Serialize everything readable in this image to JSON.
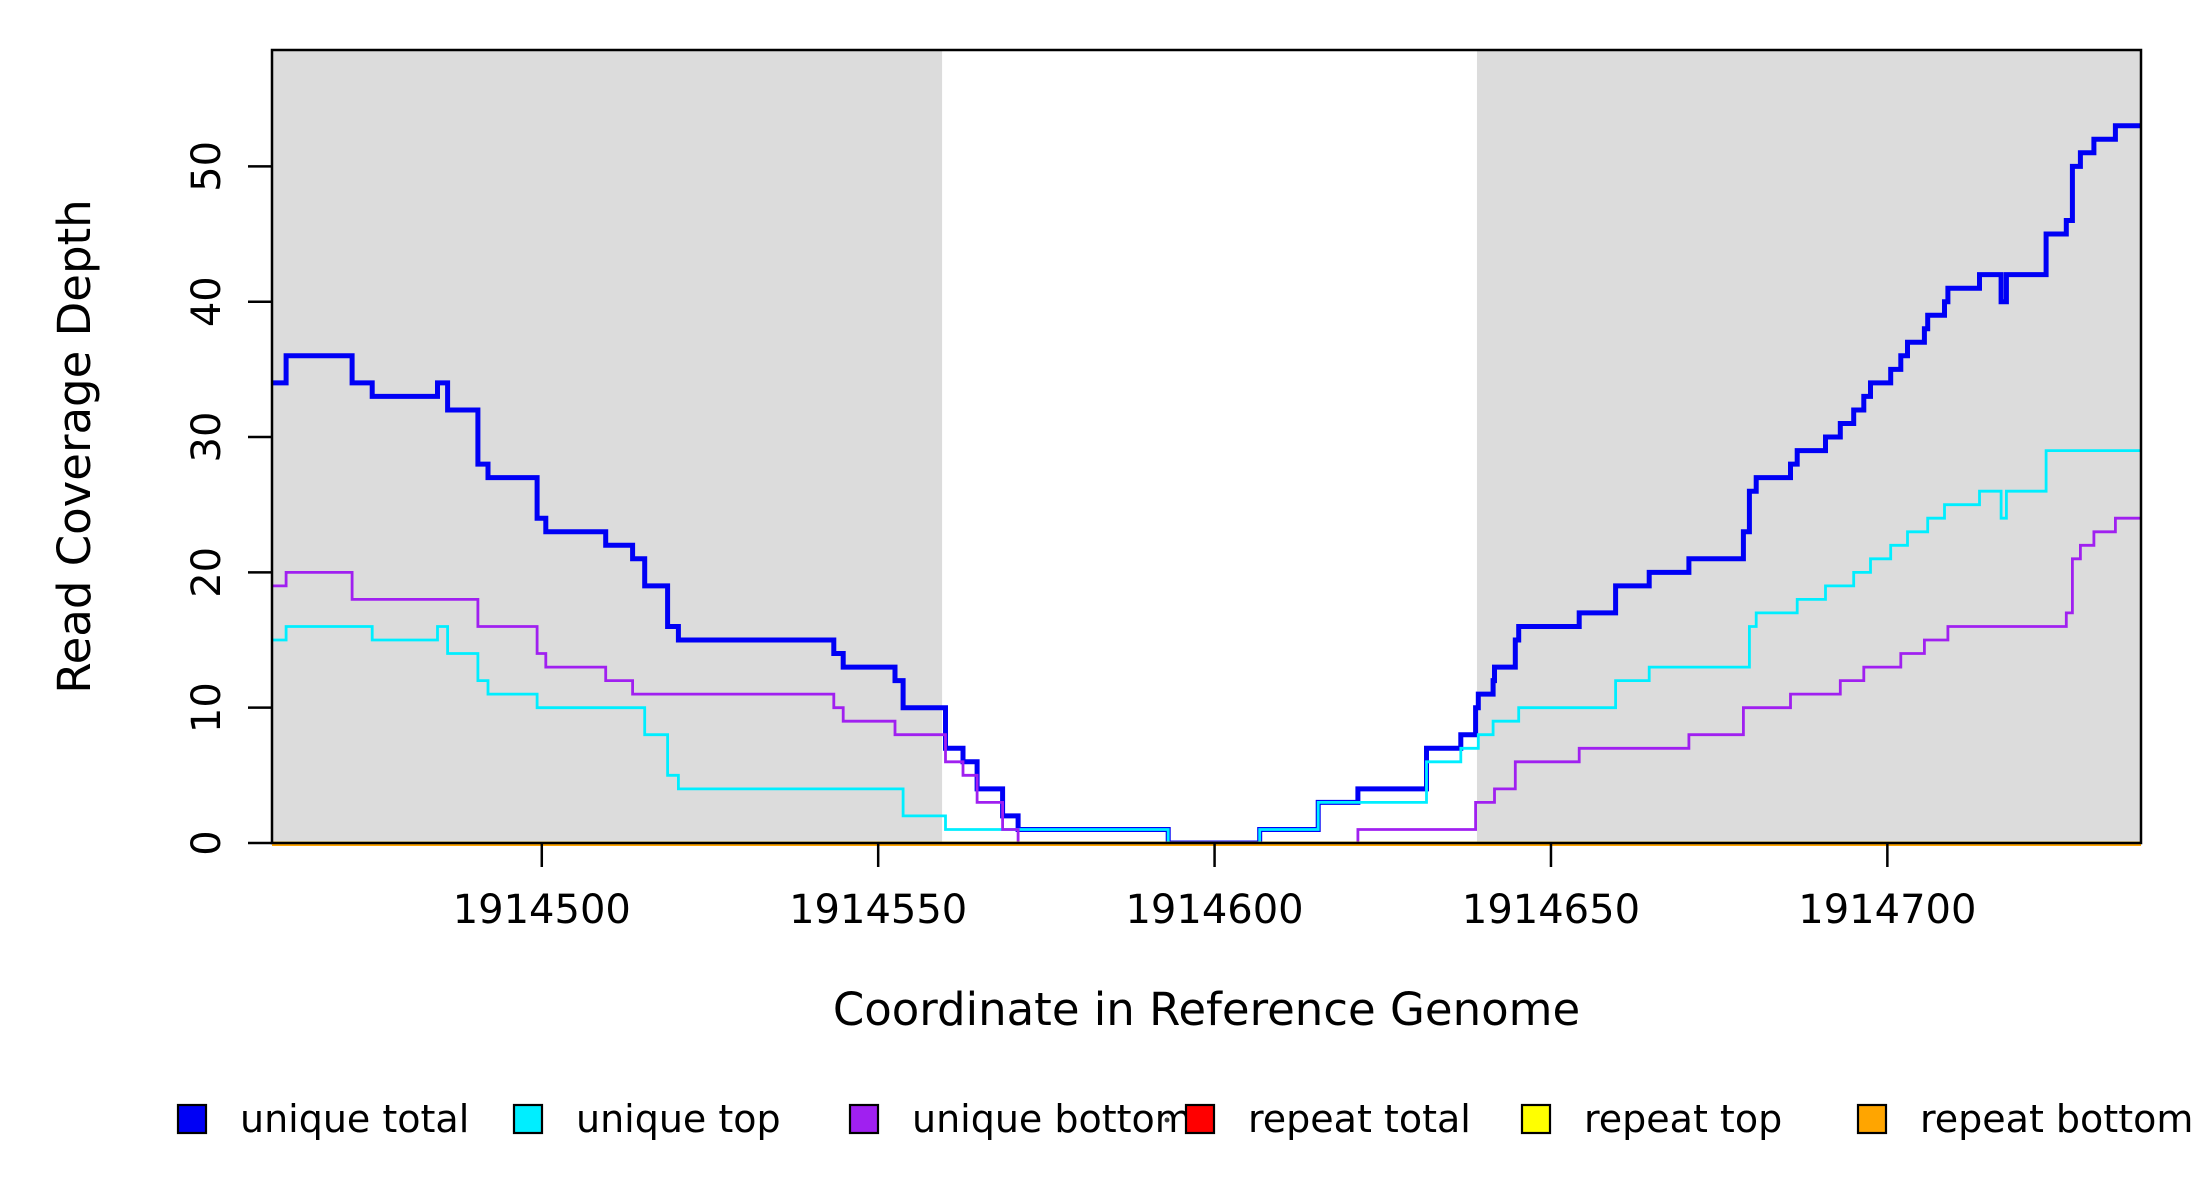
{
  "figure": {
    "background": "#ffffff"
  },
  "x_axis": {
    "title": "Coordinate in Reference Genome",
    "ticks": [
      1914500,
      1914550,
      1914600,
      1914650,
      1914700
    ],
    "range": [
      1914459.9,
      1914737.7
    ]
  },
  "y_axis": {
    "title": "Read Coverage Depth",
    "ticks": [
      0,
      10,
      20,
      30,
      40,
      50
    ],
    "range": [
      0,
      58.6
    ]
  },
  "plot": {
    "shaded_region_color": "#DCDCDC",
    "box_color": "#000000",
    "shaded_regions": [
      [
        1914459.9,
        1914559.5
      ],
      [
        1914639.0,
        1914737.7
      ]
    ]
  },
  "legend": {
    "items": [
      {
        "label": "unique total",
        "color": "#0000F5"
      },
      {
        "label": "unique top",
        "color": "#00EEFF"
      },
      {
        "label": "unique bottom",
        "color": "#A020F0"
      },
      {
        "label": "repeat total",
        "color": "#FF0000"
      },
      {
        "label": "repeat top",
        "color": "#FFFF00"
      },
      {
        "label": "repeat bottom",
        "color": "#FFA500"
      }
    ]
  },
  "chart_data": {
    "type": "line",
    "subtype": "step",
    "title": "",
    "xlabel": "Coordinate in Reference Genome",
    "ylabel": "Read Coverage Depth",
    "xlim": [
      1914459.9,
      1914737.7
    ],
    "ylim": [
      0,
      58.6
    ],
    "grid": false,
    "legend_position": "bottom",
    "series": [
      {
        "name": "unique total",
        "color": "#0000F5",
        "width": 5,
        "points": [
          [
            1914459.9,
            34
          ],
          [
            1914462,
            36
          ],
          [
            1914471.8,
            34
          ],
          [
            1914474.8,
            33
          ],
          [
            1914484.5,
            34
          ],
          [
            1914486,
            32
          ],
          [
            1914490.5,
            28
          ],
          [
            1914492,
            27
          ],
          [
            1914499.3,
            24
          ],
          [
            1914500.6,
            23
          ],
          [
            1914509.5,
            22
          ],
          [
            1914513.5,
            21
          ],
          [
            1914515.3,
            19
          ],
          [
            1914518.7,
            16
          ],
          [
            1914520.3,
            15
          ],
          [
            1914543.4,
            14
          ],
          [
            1914544.8,
            13
          ],
          [
            1914552.5,
            12
          ],
          [
            1914553.7,
            10
          ],
          [
            1914560,
            7
          ],
          [
            1914562.6,
            6
          ],
          [
            1914564.7,
            4
          ],
          [
            1914568.5,
            2
          ],
          [
            1914570.8,
            1
          ],
          [
            1914593.1,
            0
          ],
          [
            1914606.7,
            1
          ],
          [
            1914615.4,
            3
          ],
          [
            1914621.3,
            4
          ],
          [
            1914631.5,
            7
          ],
          [
            1914636.6,
            8
          ],
          [
            1914638.8,
            10
          ],
          [
            1914639.2,
            11
          ],
          [
            1914641.4,
            12
          ],
          [
            1914641.6,
            13
          ],
          [
            1914644.7,
            15
          ],
          [
            1914645.2,
            16
          ],
          [
            1914654.2,
            17
          ],
          [
            1914659.6,
            19
          ],
          [
            1914664.6,
            20
          ],
          [
            1914670.5,
            21
          ],
          [
            1914678.6,
            23
          ],
          [
            1914679.5,
            26
          ],
          [
            1914680.5,
            27
          ],
          [
            1914685.6,
            28
          ],
          [
            1914686.6,
            29
          ],
          [
            1914690.8,
            30
          ],
          [
            1914693,
            31
          ],
          [
            1914695,
            32
          ],
          [
            1914696.5,
            33
          ],
          [
            1914697.5,
            34
          ],
          [
            1914700.5,
            35
          ],
          [
            1914702,
            36
          ],
          [
            1914703,
            37
          ],
          [
            1914705.5,
            38
          ],
          [
            1914706,
            39
          ],
          [
            1914708.5,
            40
          ],
          [
            1914709,
            41
          ],
          [
            1914713.7,
            42
          ],
          [
            1914716.9,
            40
          ],
          [
            1914717.7,
            42
          ],
          [
            1914723.6,
            45
          ],
          [
            1914726.6,
            46
          ],
          [
            1914727.5,
            50
          ],
          [
            1914728.7,
            51
          ],
          [
            1914730.7,
            52
          ],
          [
            1914733.9,
            53
          ]
        ]
      },
      {
        "name": "unique top",
        "color": "#00EEFF",
        "width": 2.8,
        "points": [
          [
            1914459.9,
            15
          ],
          [
            1914462,
            16
          ],
          [
            1914474.8,
            15
          ],
          [
            1914484.5,
            16
          ],
          [
            1914486,
            14
          ],
          [
            1914490.5,
            12
          ],
          [
            1914492,
            11
          ],
          [
            1914499.3,
            10
          ],
          [
            1914515.3,
            8
          ],
          [
            1914518.7,
            5
          ],
          [
            1914520.3,
            4
          ],
          [
            1914553.7,
            2
          ],
          [
            1914560,
            1
          ],
          [
            1914593.1,
            0
          ],
          [
            1914606.7,
            1
          ],
          [
            1914615.4,
            3
          ],
          [
            1914631.5,
            6
          ],
          [
            1914636.6,
            7
          ],
          [
            1914639.2,
            8
          ],
          [
            1914641.4,
            9
          ],
          [
            1914645.2,
            10
          ],
          [
            1914659.6,
            12
          ],
          [
            1914664.6,
            13
          ],
          [
            1914679.5,
            16
          ],
          [
            1914680.5,
            17
          ],
          [
            1914686.6,
            18
          ],
          [
            1914690.8,
            19
          ],
          [
            1914695,
            20
          ],
          [
            1914697.5,
            21
          ],
          [
            1914700.5,
            22
          ],
          [
            1914703,
            23
          ],
          [
            1914706,
            24
          ],
          [
            1914708.5,
            25
          ],
          [
            1914713.7,
            26
          ],
          [
            1914716.9,
            24
          ],
          [
            1914717.7,
            26
          ],
          [
            1914723.6,
            29
          ]
        ]
      },
      {
        "name": "unique bottom",
        "color": "#A020F0",
        "width": 2.8,
        "points": [
          [
            1914459.9,
            19
          ],
          [
            1914462,
            20
          ],
          [
            1914471.8,
            18
          ],
          [
            1914490.5,
            16
          ],
          [
            1914499.3,
            14
          ],
          [
            1914500.6,
            13
          ],
          [
            1914509.5,
            12
          ],
          [
            1914513.5,
            11
          ],
          [
            1914543.4,
            10
          ],
          [
            1914544.8,
            9
          ],
          [
            1914552.5,
            8
          ],
          [
            1914560,
            6
          ],
          [
            1914562.6,
            5
          ],
          [
            1914564.7,
            3
          ],
          [
            1914568.5,
            1
          ],
          [
            1914570.8,
            0
          ],
          [
            1914621.3,
            1
          ],
          [
            1914638.8,
            3
          ],
          [
            1914641.6,
            4
          ],
          [
            1914644.7,
            6
          ],
          [
            1914654.2,
            7
          ],
          [
            1914670.5,
            8
          ],
          [
            1914678.6,
            10
          ],
          [
            1914685.6,
            11
          ],
          [
            1914693,
            12
          ],
          [
            1914696.5,
            13
          ],
          [
            1914702,
            14
          ],
          [
            1914705.5,
            15
          ],
          [
            1914709,
            16
          ],
          [
            1914726.6,
            17
          ],
          [
            1914727.5,
            21
          ],
          [
            1914728.7,
            22
          ],
          [
            1914730.7,
            23
          ],
          [
            1914733.9,
            24
          ]
        ]
      },
      {
        "name": "repeat total",
        "color": "#FF0000",
        "width": 2.8,
        "points": [
          [
            1914459.9,
            0
          ]
        ]
      },
      {
        "name": "repeat top",
        "color": "#FFFF00",
        "width": 2.8,
        "points": [
          [
            1914459.9,
            0
          ]
        ]
      },
      {
        "name": "repeat bottom",
        "color": "#FFA500",
        "width": 3.5,
        "points": [
          [
            1914459.9,
            0
          ]
        ]
      }
    ]
  }
}
